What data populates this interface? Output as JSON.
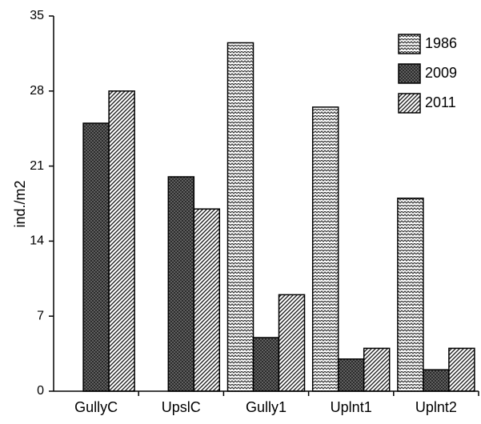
{
  "chart_data": {
    "type": "bar",
    "categories": [
      "GullyC",
      "UpslC",
      "Gully1",
      "Uplnt1",
      "Uplnt2"
    ],
    "series": [
      {
        "name": "1986",
        "values": [
          null,
          null,
          32.5,
          26.5,
          18
        ],
        "pattern": "zigzag"
      },
      {
        "name": "2009",
        "values": [
          25,
          20,
          5,
          3,
          2
        ],
        "pattern": "crosshatch"
      },
      {
        "name": "2011",
        "values": [
          28,
          17,
          9,
          4,
          4
        ],
        "pattern": "diagonal"
      }
    ],
    "ylabel": "ind./m2",
    "ylim": [
      0,
      35
    ],
    "yticks": [
      0,
      7,
      14,
      21,
      28,
      35
    ],
    "grid": false,
    "legend_position": "top-right"
  }
}
